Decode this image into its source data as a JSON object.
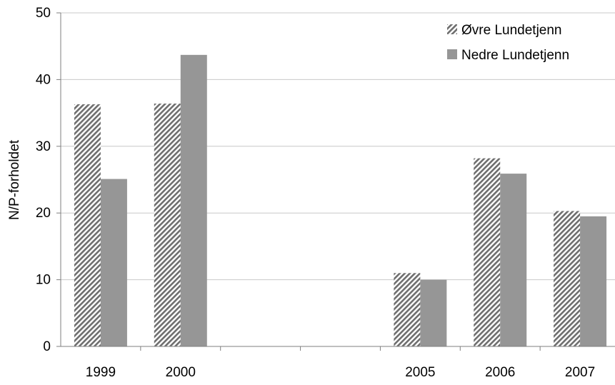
{
  "chart_data": {
    "type": "bar",
    "categories": [
      "1999",
      "2000",
      "",
      "",
      "2005",
      "2006",
      "2007"
    ],
    "series": [
      {
        "name": "Øvre Lundetjenn",
        "values": [
          36.3,
          36.4,
          null,
          null,
          11.0,
          28.2,
          20.3
        ],
        "pattern": "hatched",
        "color": "#7a7a7a"
      },
      {
        "name": "Nedre Lundetjenn",
        "values": [
          25.1,
          43.7,
          null,
          null,
          10.0,
          25.9,
          19.5
        ],
        "pattern": "solid",
        "color": "#969696"
      }
    ],
    "xlabel": "",
    "ylabel": "N/P-forholdet",
    "ylim": [
      0,
      50
    ],
    "yticks": [
      0,
      10,
      20,
      30,
      40,
      50
    ],
    "grid": true,
    "legend_position": "top-right"
  }
}
